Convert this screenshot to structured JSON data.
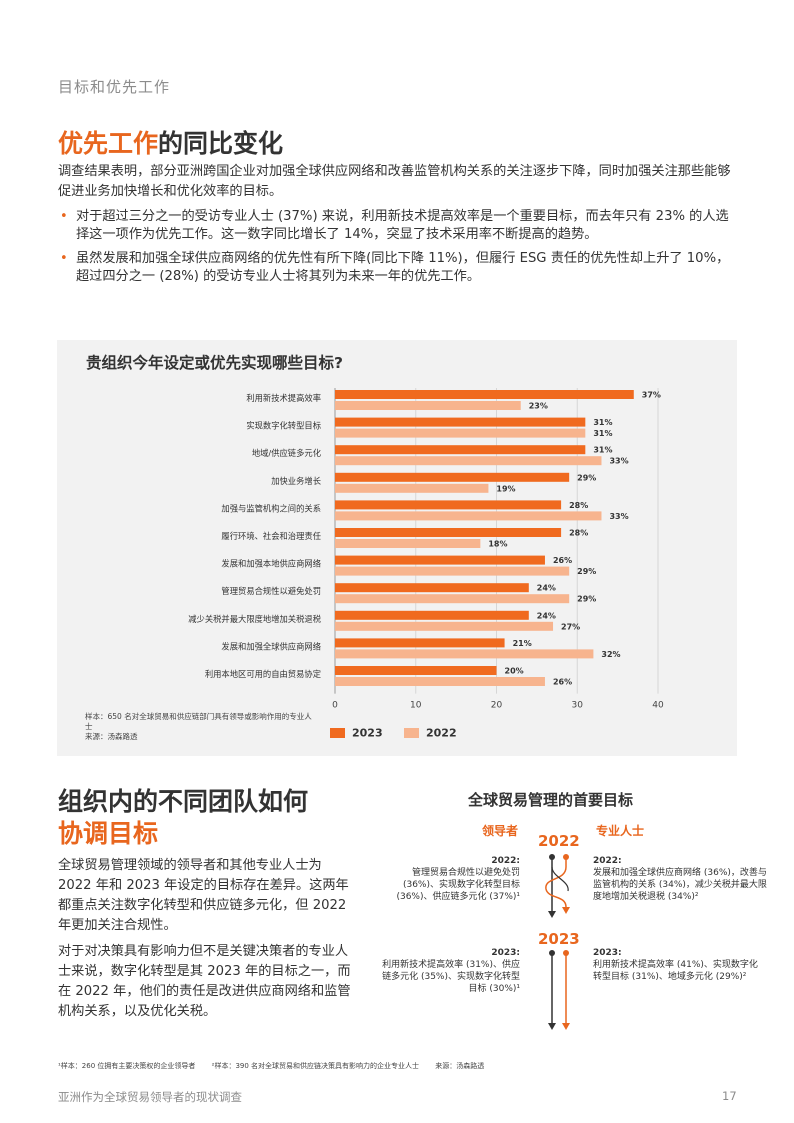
{
  "section_label": "目标和优先工作",
  "title": {
    "highlight": "优先工作",
    "rest": "的同比变化"
  },
  "intro": "调查结果表明，部分亚洲跨国企业对加强全球供应网络和改善监管机构关系的关注逐步下降，同时加强关注那些能够促进业务加快增长和优化效率的目标。",
  "bullets": [
    "对于超过三分之一的受访专业人士 (37%) 来说，利用新技术提高效率是一个重要目标，而去年只有 23% 的人选择这一项作为优先工作。这一数字同比增长了 14%，突显了技术采用率不断提高的趋势。",
    "虽然发展和加强全球供应商网络的优先性有所下降(同比下降 11%)，但履行 ESG 责任的优先性却上升了 10%，超过四分之一 (28%) 的受访专业人士将其列为未来一年的优先工作。"
  ],
  "chart_title": "贵组织今年设定或优先实现哪些目标?",
  "chart_note": "样本：650 名对全球贸易和供应链部门具有领导或影响作用的专业人士\n来源：汤森路透",
  "chart_data": {
    "type": "bar",
    "orientation": "horizontal",
    "categories": [
      "利用新技术提高效率",
      "实现数字化转型目标",
      "地域/供应链多元化",
      "加快业务增长",
      "加强与监管机构之间的关系",
      "履行环境、社会和治理责任",
      "发展和加强本地供应商网络",
      "管理贸易合规性以避免处罚",
      "减少关税并最大限度地增加关税退税",
      "发展和加强全球供应商网络",
      "利用本地区可用的自由贸易协定"
    ],
    "series": [
      {
        "name": "2023",
        "color": "#f06a1f",
        "values": [
          37,
          31,
          31,
          29,
          28,
          28,
          26,
          24,
          24,
          21,
          20
        ]
      },
      {
        "name": "2022",
        "color": "#f7b48e",
        "values": [
          23,
          31,
          33,
          19,
          33,
          18,
          29,
          29,
          27,
          32,
          26
        ]
      }
    ],
    "xlim": [
      0,
      40
    ],
    "xticks": [
      0,
      10,
      20,
      30,
      40
    ],
    "value_suffix": "%",
    "legend_position": "bottom",
    "grid": true
  },
  "team": {
    "title_line1": "组织内的不同团队如何",
    "title_line2": "协调目标",
    "p1": "全球贸易管理领域的领导者和其他专业人士为 2022 年和 2023 年设定的目标存在差异。这两年都重点关注数字化转型和供应链多元化，但 2022 年更加关注合规性。",
    "p2": "对于对决策具有影响力但不是关键决策者的专业人士来说，数字化转型是其 2023 年的目标之一，而在 2022 年，他们的责任是改进供应商网络和监管机构关系，以及优化关税。"
  },
  "diagram": {
    "title": "全球贸易管理的首要目标",
    "leaders_label": "领导者",
    "pros_label": "专业人士",
    "year1": "2022",
    "year2": "2023",
    "left_2022_year": "2022:",
    "left_2022_text": "管理贸易合规性以避免处罚 (36%)、实现数字化转型目标 (36%)、供应链多元化 (37%)¹",
    "right_2022_year": "2022:",
    "right_2022_text": "发展和加强全球供应商网络 (36%)，改善与监管机构的关系 (34%)，减少关税并最大限度地增加关税退税 (34%)²",
    "left_2023_year": "2023:",
    "left_2023_text": "利用新技术提高效率 (31%)、供应链多元化 (35%)、实现数字化转型目标 (30%)¹",
    "right_2023_year": "2023:",
    "right_2023_text": "利用新技术提高效率 (41%)、实现数字化转型目标 (31%)、地域多元化 (29%)²"
  },
  "footnotes": [
    "¹样本：260 位拥有主要决策权的企业领导者",
    "²样本：390 名对全球贸易和供应链决策具有影响力的企业专业人士",
    "来源：汤森路透"
  ],
  "footer": "亚洲作为全球贸易领导者的现状调查",
  "page_number": "17",
  "colors": {
    "accent": "#e8661e",
    "bar_2023": "#f06a1f",
    "bar_2022": "#f7b48e",
    "panel": "#f2f2f2"
  }
}
